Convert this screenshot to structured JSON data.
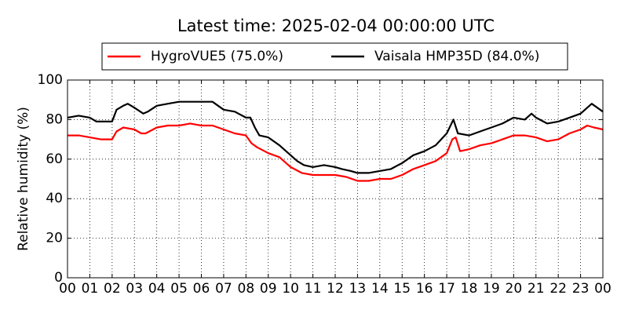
{
  "chart_data": {
    "type": "line",
    "title": "Latest time: 2025-02-04 00:00:00 UTC",
    "ylabel": "Relative humidity (%)",
    "xlim": [
      0,
      24
    ],
    "ylim": [
      0,
      100
    ],
    "yticks": [
      0,
      20,
      40,
      60,
      80,
      100
    ],
    "xticks": [
      {
        "value": 0,
        "label": "00"
      },
      {
        "value": 1,
        "label": "01"
      },
      {
        "value": 2,
        "label": "02"
      },
      {
        "value": 3,
        "label": "03"
      },
      {
        "value": 4,
        "label": "04"
      },
      {
        "value": 5,
        "label": "05"
      },
      {
        "value": 6,
        "label": "06"
      },
      {
        "value": 7,
        "label": "07"
      },
      {
        "value": 8,
        "label": "08"
      },
      {
        "value": 9,
        "label": "09"
      },
      {
        "value": 10,
        "label": "10"
      },
      {
        "value": 11,
        "label": "11"
      },
      {
        "value": 12,
        "label": "12"
      },
      {
        "value": 13,
        "label": "13"
      },
      {
        "value": 14,
        "label": "14"
      },
      {
        "value": 15,
        "label": "15"
      },
      {
        "value": 16,
        "label": "16"
      },
      {
        "value": 17,
        "label": "17"
      },
      {
        "value": 18,
        "label": "18"
      },
      {
        "value": 19,
        "label": "19"
      },
      {
        "value": 20,
        "label": "20"
      },
      {
        "value": 21,
        "label": "21"
      },
      {
        "value": 22,
        "label": "22"
      },
      {
        "value": 23,
        "label": "23"
      },
      {
        "value": 24,
        "label": "00"
      }
    ],
    "grid": true,
    "legend": "top",
    "series": [
      {
        "name": "HygroVUE5 (75.0%)",
        "color": "#ff0000",
        "x": [
          0,
          0.5,
          1,
          1.5,
          2,
          2.2,
          2.5,
          3,
          3.3,
          3.5,
          4,
          4.5,
          5,
          5.5,
          6,
          6.5,
          7,
          7.5,
          8,
          8.25,
          8.5,
          9,
          9.5,
          10,
          10.5,
          11,
          11.5,
          12,
          12.5,
          13,
          13.5,
          14,
          14.5,
          15,
          15.5,
          16,
          16.5,
          17,
          17.25,
          17.4,
          17.6,
          18,
          18.5,
          19,
          19.5,
          20,
          20.5,
          21,
          21.5,
          22,
          22.5,
          23,
          23.3,
          23.6,
          24
        ],
        "values": [
          72,
          72,
          71,
          70,
          70,
          74,
          76,
          75,
          73,
          73,
          76,
          77,
          77,
          78,
          77,
          77,
          75,
          73,
          72,
          68,
          66,
          63,
          61,
          56,
          53,
          52,
          52,
          52,
          51,
          49,
          49,
          50,
          50,
          52,
          55,
          57,
          59,
          63,
          70,
          71,
          64,
          65,
          67,
          68,
          70,
          72,
          72,
          71,
          69,
          70,
          73,
          75,
          77,
          76,
          75
        ]
      },
      {
        "name": "Vaisala HMP35D (84.0%)",
        "color": "#000000",
        "x": [
          0,
          0.5,
          1,
          1.3,
          1.5,
          2,
          2.2,
          2.5,
          2.7,
          3,
          3.4,
          3.6,
          4,
          4.5,
          5,
          5.5,
          6,
          6.5,
          7,
          7.5,
          8,
          8.2,
          8.4,
          8.6,
          9,
          9.5,
          10,
          10.3,
          10.6,
          11,
          11.5,
          12,
          12.3,
          12.7,
          13,
          13.5,
          14,
          14.5,
          15,
          15.5,
          16,
          16.5,
          17,
          17.3,
          17.5,
          18,
          18.5,
          19,
          19.5,
          20,
          20.5,
          20.8,
          21,
          21.5,
          22,
          22.5,
          23,
          23.5,
          24
        ],
        "values": [
          81,
          82,
          81,
          79,
          79,
          79,
          85,
          87,
          88,
          86,
          83,
          84,
          87,
          88,
          89,
          89,
          89,
          89,
          85,
          84,
          81,
          81,
          76,
          72,
          71,
          67,
          62,
          59,
          57,
          56,
          57,
          56,
          55,
          54,
          53,
          53,
          54,
          55,
          58,
          62,
          64,
          67,
          73,
          80,
          73,
          72,
          74,
          76,
          78,
          81,
          80,
          83,
          81,
          78,
          79,
          81,
          83,
          88,
          84
        ]
      }
    ]
  }
}
